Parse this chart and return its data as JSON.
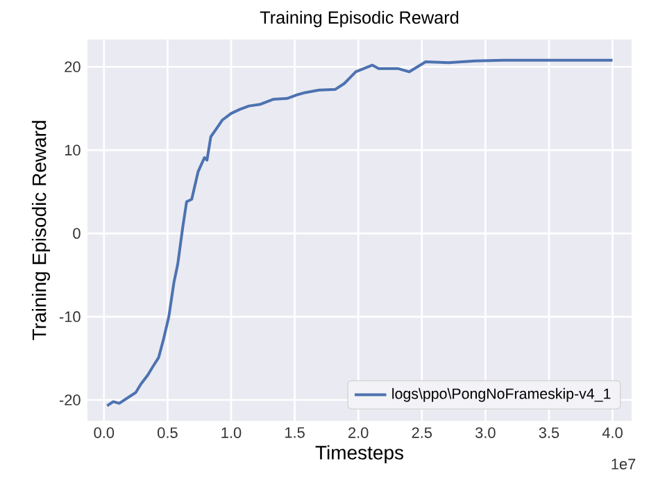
{
  "chart_data": {
    "type": "line",
    "title": "Training Episodic Reward",
    "xlabel": "Timesteps",
    "ylabel": "Training Episodic Reward",
    "x": [
      0.025,
      0.073,
      0.12,
      0.2,
      0.25,
      0.29,
      0.345,
      0.38,
      0.43,
      0.47,
      0.51,
      0.55,
      0.58,
      0.62,
      0.65,
      0.69,
      0.74,
      0.79,
      0.81,
      0.84,
      0.89,
      0.93,
      1.0,
      1.07,
      1.14,
      1.23,
      1.33,
      1.44,
      1.51,
      1.58,
      1.69,
      1.82,
      1.89,
      1.98,
      2.11,
      2.16,
      2.31,
      2.4,
      2.53,
      2.71,
      2.92,
      3.14,
      3.47,
      3.83,
      4.0
    ],
    "series": [
      {
        "name": "logs\\ppo\\PongNoFrameskip-v4_1",
        "color": "#4c72b0",
        "values": [
          -20.7,
          -20.2,
          -20.4,
          -19.6,
          -19.1,
          -18.1,
          -17.0,
          -16.1,
          -14.9,
          -12.6,
          -10.0,
          -5.9,
          -3.7,
          0.8,
          3.8,
          4.1,
          7.4,
          9.1,
          8.8,
          11.6,
          12.7,
          13.6,
          14.4,
          14.9,
          15.3,
          15.5,
          16.1,
          16.2,
          16.6,
          16.9,
          17.2,
          17.3,
          18.0,
          19.4,
          20.2,
          19.8,
          19.8,
          19.4,
          20.6,
          20.5,
          20.7,
          20.8,
          20.8,
          20.8,
          20.8
        ]
      }
    ],
    "xlim": [
      -0.13,
      4.15
    ],
    "ylim": [
      -22.5,
      23.3
    ],
    "xticks": [
      {
        "value": 0,
        "label": "0.0"
      },
      0.5,
      {
        "value": 1,
        "label": "1.0"
      },
      1.5,
      {
        "value": 2,
        "label": "2.0"
      },
      2.5,
      {
        "value": 3,
        "label": "3.0"
      },
      3.5,
      {
        "value": 4,
        "label": "4.0"
      }
    ],
    "yticks": [
      -20,
      -10,
      0,
      10,
      20
    ],
    "annotations": [
      "1e7"
    ],
    "grid": true,
    "legend": "bottom right",
    "marker": "none",
    "line_style": "solid"
  }
}
